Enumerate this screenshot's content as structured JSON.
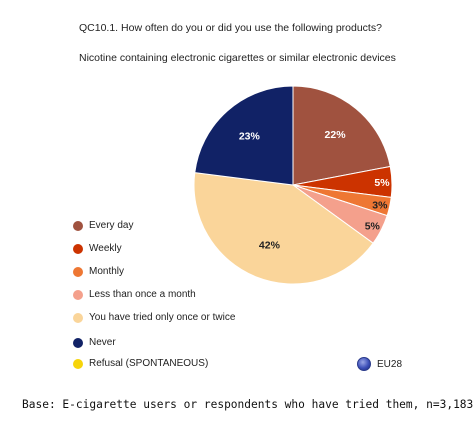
{
  "question": "QC10.1. How often do you or did you use the following products?",
  "subtitle": "Nicotine containing electronic cigarettes or similar electronic devices",
  "base_note": "Base: E-cigarette users or respondents who have tried them, n=3,183",
  "eu_label": "EU28",
  "chart_data": {
    "type": "pie",
    "start_angle_deg": 0,
    "direction": "clockwise",
    "slices": [
      {
        "name": "Every day",
        "value": 22,
        "label": "22%",
        "color": "#a0523f",
        "label_color": "#ffffff"
      },
      {
        "name": "Weekly",
        "value": 5,
        "label": "5%",
        "color": "#cc3300",
        "label_color": "#ffffff"
      },
      {
        "name": "Monthly",
        "value": 3,
        "label": "3%",
        "color": "#ee7733",
        "label_color": "#222222"
      },
      {
        "name": "Less than once a month",
        "value": 5,
        "label": "5%",
        "color": "#f4a08c",
        "label_color": "#222222"
      },
      {
        "name": "You have tried only once or twice",
        "value": 42,
        "label": "42%",
        "color": "#fad59a",
        "label_color": "#222222"
      },
      {
        "name": "Never",
        "value": 23,
        "label": "23%",
        "color": "#112266",
        "label_color": "#ffffff"
      }
    ],
    "legend": [
      {
        "name": "Every day",
        "color": "#a0523f"
      },
      {
        "name": "Weekly",
        "color": "#cc3300"
      },
      {
        "name": "Monthly",
        "color": "#ee7733"
      },
      {
        "name": "Less than once a month",
        "color": "#f4a08c"
      },
      {
        "name": "You have tried only once or twice",
        "color": "#fad59a"
      },
      {
        "name": "Never",
        "color": "#112266"
      },
      {
        "name": "Refusal (SPONTANEOUS)",
        "color": "#f6d40a"
      }
    ],
    "legend_position": "left"
  }
}
